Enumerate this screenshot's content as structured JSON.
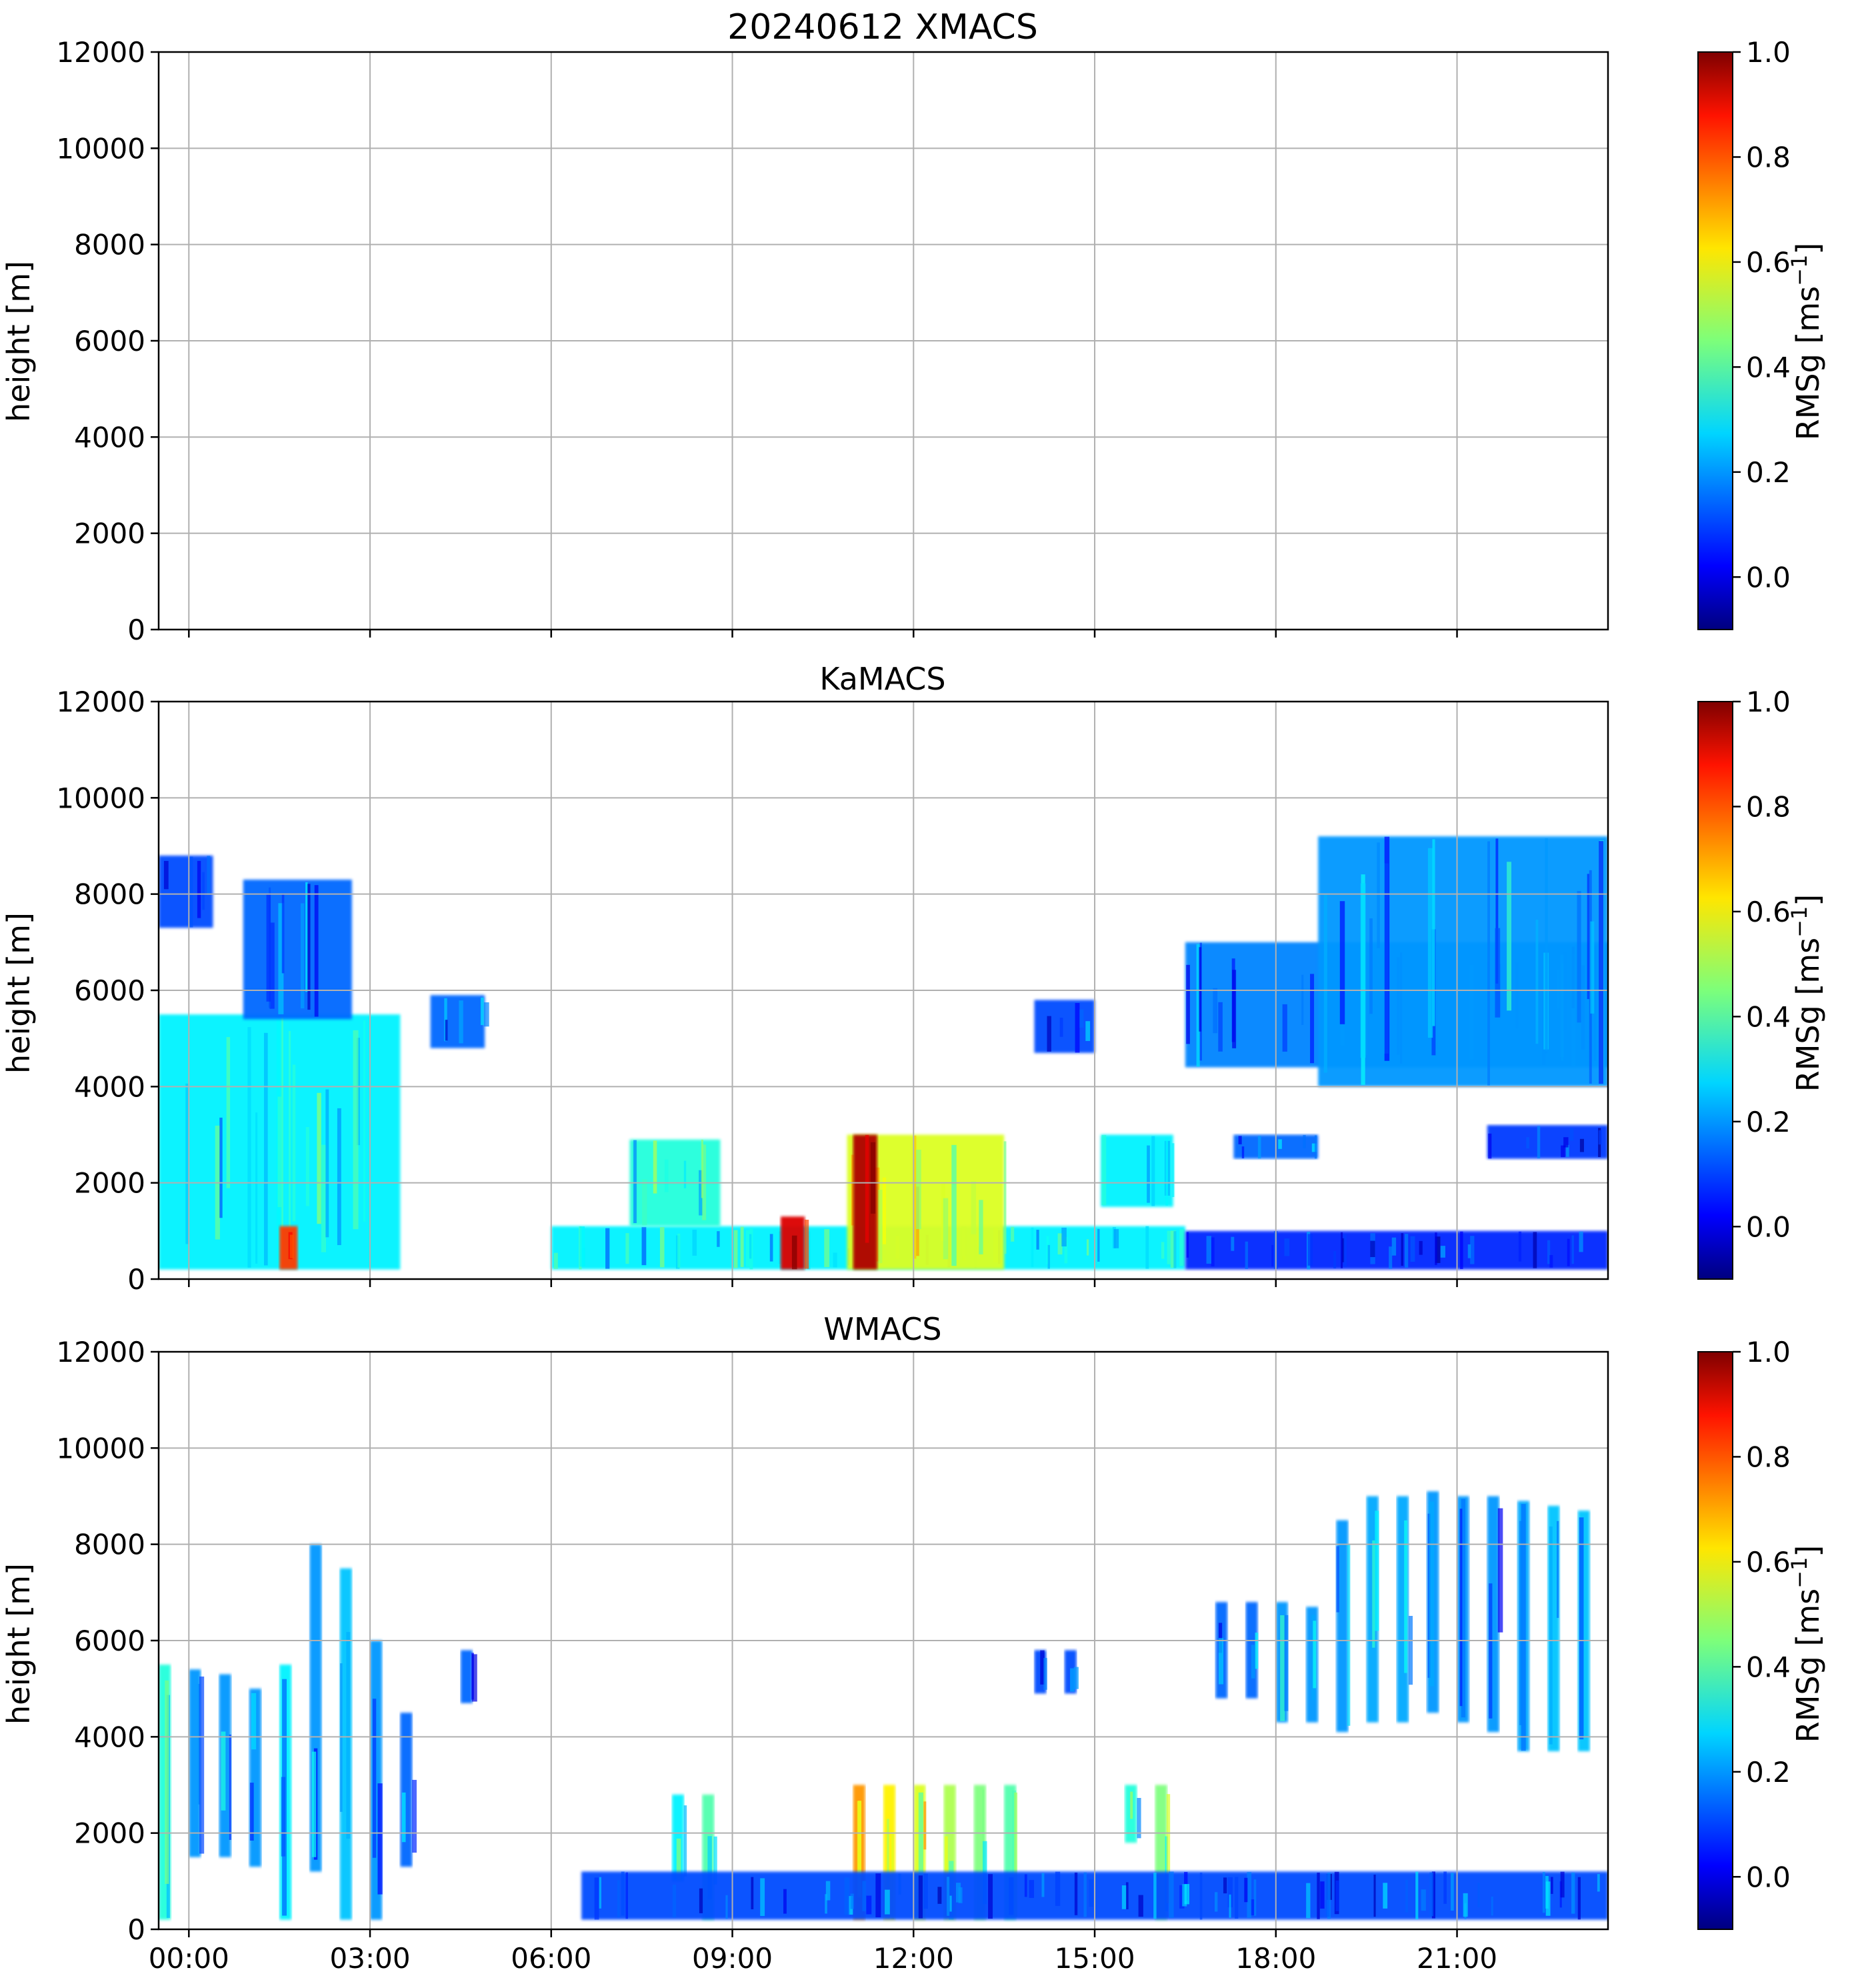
{
  "figure": {
    "panels": [
      {
        "id": "xmacs",
        "title": "20240612 XMACS",
        "ylabel": "height [m]",
        "colorbar_label": "RMSg [ms",
        "colorbar_exp": "−1",
        "colorbar_close": "]"
      },
      {
        "id": "kamacs",
        "title": "KaMACS",
        "ylabel": "height [m]",
        "colorbar_label": "RMSg [ms",
        "colorbar_exp": "−1",
        "colorbar_close": "]"
      },
      {
        "id": "wmacs",
        "title": "WMACS",
        "ylabel": "height [m]",
        "colorbar_label": "RMSg [ms",
        "colorbar_exp": "−1",
        "colorbar_close": "]"
      }
    ]
  },
  "chart_data": [
    {
      "type": "heatmap",
      "title": "20240612 XMACS",
      "ylabel": "height [m]",
      "ylim": [
        0,
        12000
      ],
      "yticks": [
        0,
        2000,
        4000,
        6000,
        8000,
        10000,
        12000
      ],
      "xlim_hours": [
        -0.5,
        23.5
      ],
      "xtick_hours": [
        0,
        3,
        6,
        9,
        12,
        15,
        18,
        21
      ],
      "xtick_labels": [],
      "grid": true,
      "colorbar": {
        "label": "RMSg [ms−1]",
        "range": [
          -0.1,
          1.0
        ],
        "ticks": [
          0.0,
          0.2,
          0.4,
          0.6,
          0.8,
          1.0
        ],
        "colormap": "jet"
      },
      "regions": []
    },
    {
      "type": "heatmap",
      "title": "KaMACS",
      "ylabel": "height [m]",
      "ylim": [
        0,
        12000
      ],
      "yticks": [
        0,
        2000,
        4000,
        6000,
        8000,
        10000,
        12000
      ],
      "xlim_hours": [
        -0.5,
        23.5
      ],
      "xtick_hours": [
        0,
        3,
        6,
        9,
        12,
        15,
        18,
        21
      ],
      "xtick_labels": [],
      "grid": true,
      "colorbar": {
        "label": "RMSg [ms−1]",
        "range": [
          -0.1,
          1.0
        ],
        "ticks": [
          0.0,
          0.2,
          0.4,
          0.6,
          0.8,
          1.0
        ],
        "colormap": "jet"
      },
      "regions": [
        {
          "t0": -0.5,
          "t1": 3.5,
          "h0": 200,
          "h1": 5500,
          "value": 0.3
        },
        {
          "t0": 0.9,
          "t1": 2.7,
          "h0": 5400,
          "h1": 8300,
          "value": 0.15
        },
        {
          "t0": -0.5,
          "t1": 0.4,
          "h0": 7300,
          "h1": 8800,
          "value": 0.12
        },
        {
          "t0": 4.0,
          "t1": 4.9,
          "h0": 4800,
          "h1": 5900,
          "value": 0.15
        },
        {
          "t0": 1.5,
          "t1": 1.8,
          "h0": 200,
          "h1": 1100,
          "value": 0.8
        },
        {
          "t0": 6.0,
          "t1": 16.5,
          "h0": 200,
          "h1": 1100,
          "value": 0.3
        },
        {
          "t0": 7.3,
          "t1": 8.8,
          "h0": 1100,
          "h1": 2900,
          "value": 0.35
        },
        {
          "t0": 10.9,
          "t1": 13.5,
          "h0": 200,
          "h1": 3000,
          "value": 0.55
        },
        {
          "t0": 11.0,
          "t1": 11.4,
          "h0": 200,
          "h1": 3000,
          "value": 0.95
        },
        {
          "t0": 9.8,
          "t1": 10.2,
          "h0": 200,
          "h1": 1300,
          "value": 0.9
        },
        {
          "t0": 15.1,
          "t1": 16.3,
          "h0": 1500,
          "h1": 3000,
          "value": 0.3
        },
        {
          "t0": 14.0,
          "t1": 15.0,
          "h0": 4700,
          "h1": 5800,
          "value": 0.12
        },
        {
          "t0": 16.5,
          "t1": 23.5,
          "h0": 4400,
          "h1": 7000,
          "value": 0.18
        },
        {
          "t0": 18.7,
          "t1": 23.5,
          "h0": 4000,
          "h1": 9200,
          "value": 0.2
        },
        {
          "t0": 16.5,
          "t1": 23.5,
          "h0": 200,
          "h1": 1000,
          "value": 0.08
        },
        {
          "t0": 17.3,
          "t1": 18.7,
          "h0": 2500,
          "h1": 3000,
          "value": 0.15
        },
        {
          "t0": 21.5,
          "t1": 23.5,
          "h0": 2500,
          "h1": 3200,
          "value": 0.1
        }
      ]
    },
    {
      "type": "heatmap",
      "title": "WMACS",
      "ylabel": "height [m]",
      "ylim": [
        0,
        12000
      ],
      "yticks": [
        0,
        2000,
        4000,
        6000,
        8000,
        10000,
        12000
      ],
      "xlim_hours": [
        -0.5,
        23.5
      ],
      "xtick_hours": [
        0,
        3,
        6,
        9,
        12,
        15,
        18,
        21
      ],
      "xtick_labels": [
        "00:00",
        "03:00",
        "06:00",
        "09:00",
        "12:00",
        "15:00",
        "18:00",
        "21:00"
      ],
      "grid": true,
      "colorbar": {
        "label": "RMSg [ms−1]",
        "range": [
          -0.1,
          1.0
        ],
        "ticks": [
          0.0,
          0.2,
          0.4,
          0.6,
          0.8,
          1.0
        ],
        "colormap": "jet"
      },
      "regions": [
        {
          "t0": -0.5,
          "t1": -0.3,
          "h0": 200,
          "h1": 5500,
          "value": 0.35
        },
        {
          "t0": 0.0,
          "t1": 0.2,
          "h0": 1500,
          "h1": 5400,
          "value": 0.2
        },
        {
          "t0": 0.5,
          "t1": 0.7,
          "h0": 1500,
          "h1": 5300,
          "value": 0.2
        },
        {
          "t0": 1.0,
          "t1": 1.2,
          "h0": 1300,
          "h1": 5000,
          "value": 0.2
        },
        {
          "t0": 1.5,
          "t1": 1.7,
          "h0": 200,
          "h1": 5500,
          "value": 0.3
        },
        {
          "t0": 2.0,
          "t1": 2.2,
          "h0": 1200,
          "h1": 8000,
          "value": 0.2
        },
        {
          "t0": 2.5,
          "t1": 2.7,
          "h0": 200,
          "h1": 7500,
          "value": 0.25
        },
        {
          "t0": 3.0,
          "t1": 3.2,
          "h0": 200,
          "h1": 6000,
          "value": 0.2
        },
        {
          "t0": 3.5,
          "t1": 3.7,
          "h0": 1300,
          "h1": 4500,
          "value": 0.15
        },
        {
          "t0": 4.5,
          "t1": 4.7,
          "h0": 4700,
          "h1": 5800,
          "value": 0.15
        },
        {
          "t0": 8.0,
          "t1": 8.2,
          "h0": 1000,
          "h1": 2800,
          "value": 0.3
        },
        {
          "t0": 8.5,
          "t1": 8.7,
          "h0": 200,
          "h1": 2800,
          "value": 0.4
        },
        {
          "t0": 11.0,
          "t1": 11.2,
          "h0": 200,
          "h1": 3000,
          "value": 0.7
        },
        {
          "t0": 11.5,
          "t1": 11.7,
          "h0": 200,
          "h1": 3000,
          "value": 0.6
        },
        {
          "t0": 12.0,
          "t1": 12.2,
          "h0": 200,
          "h1": 3000,
          "value": 0.55
        },
        {
          "t0": 12.5,
          "t1": 12.7,
          "h0": 200,
          "h1": 3000,
          "value": 0.5
        },
        {
          "t0": 13.0,
          "t1": 13.2,
          "h0": 200,
          "h1": 3000,
          "value": 0.45
        },
        {
          "t0": 13.5,
          "t1": 13.7,
          "h0": 200,
          "h1": 3000,
          "value": 0.4
        },
        {
          "t0": 14.0,
          "t1": 14.2,
          "h0": 4900,
          "h1": 5800,
          "value": 0.12
        },
        {
          "t0": 14.5,
          "t1": 14.7,
          "h0": 4900,
          "h1": 5800,
          "value": 0.12
        },
        {
          "t0": 15.5,
          "t1": 15.7,
          "h0": 1800,
          "h1": 3000,
          "value": 0.35
        },
        {
          "t0": 16.0,
          "t1": 16.2,
          "h0": 200,
          "h1": 3000,
          "value": 0.45
        },
        {
          "t0": 17.0,
          "t1": 17.2,
          "h0": 4800,
          "h1": 6800,
          "value": 0.15
        },
        {
          "t0": 17.5,
          "t1": 17.7,
          "h0": 4800,
          "h1": 6800,
          "value": 0.15
        },
        {
          "t0": 18.0,
          "t1": 18.2,
          "h0": 4300,
          "h1": 6800,
          "value": 0.2
        },
        {
          "t0": 18.5,
          "t1": 18.7,
          "h0": 4300,
          "h1": 6700,
          "value": 0.2
        },
        {
          "t0": 19.0,
          "t1": 19.2,
          "h0": 4100,
          "h1": 8500,
          "value": 0.2
        },
        {
          "t0": 19.5,
          "t1": 19.7,
          "h0": 4300,
          "h1": 9000,
          "value": 0.22
        },
        {
          "t0": 20.0,
          "t1": 20.2,
          "h0": 4300,
          "h1": 9000,
          "value": 0.22
        },
        {
          "t0": 20.5,
          "t1": 20.7,
          "h0": 4500,
          "h1": 9100,
          "value": 0.2
        },
        {
          "t0": 21.0,
          "t1": 21.2,
          "h0": 4300,
          "h1": 9000,
          "value": 0.2
        },
        {
          "t0": 21.5,
          "t1": 21.7,
          "h0": 4100,
          "h1": 9000,
          "value": 0.2
        },
        {
          "t0": 22.0,
          "t1": 22.2,
          "h0": 3700,
          "h1": 8900,
          "value": 0.22
        },
        {
          "t0": 22.5,
          "t1": 22.7,
          "h0": 3700,
          "h1": 8800,
          "value": 0.25
        },
        {
          "t0": 23.0,
          "t1": 23.2,
          "h0": 3700,
          "h1": 8700,
          "value": 0.25
        },
        {
          "t0": 6.5,
          "t1": 23.5,
          "h0": 200,
          "h1": 1200,
          "value": 0.12
        }
      ]
    }
  ]
}
